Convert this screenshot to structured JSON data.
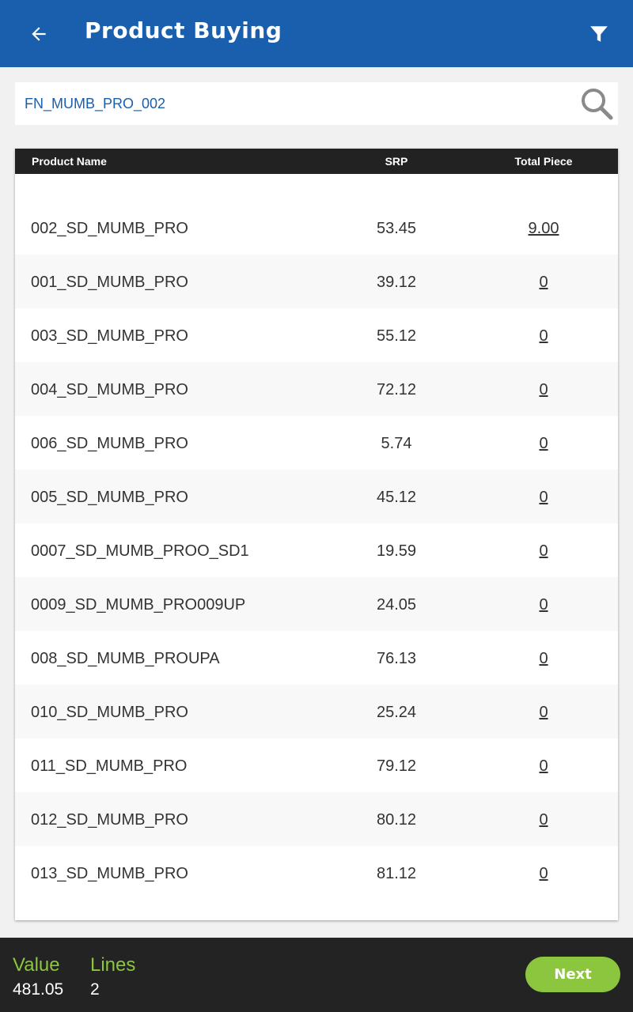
{
  "header": {
    "title": "Product Buying",
    "back_icon": "arrow-left-icon",
    "filter_icon": "filter-icon",
    "color": "#1a5fad"
  },
  "search": {
    "value": "FN_MUMB_PRO_002",
    "icon": "search-icon"
  },
  "table": {
    "columns": [
      "Product Name",
      "SRP",
      "Total Piece"
    ],
    "rows": [
      {
        "name": "002_SD_MUMB_PRO",
        "srp": "53.45",
        "total": "9.00"
      },
      {
        "name": "001_SD_MUMB_PRO",
        "srp": "39.12",
        "total": "0"
      },
      {
        "name": "003_SD_MUMB_PRO",
        "srp": "55.12",
        "total": "0"
      },
      {
        "name": "004_SD_MUMB_PRO",
        "srp": "72.12",
        "total": "0"
      },
      {
        "name": "006_SD_MUMB_PRO",
        "srp": "5.74",
        "total": "0"
      },
      {
        "name": "005_SD_MUMB_PRO",
        "srp": "45.12",
        "total": "0"
      },
      {
        "name": "0007_SD_MUMB_PROO_SD1",
        "srp": "19.59",
        "total": "0"
      },
      {
        "name": "0009_SD_MUMB_PRO009UP",
        "srp": "24.05",
        "total": "0"
      },
      {
        "name": "008_SD_MUMB_PROUPA",
        "srp": "76.13",
        "total": "0"
      },
      {
        "name": "010_SD_MUMB_PRO",
        "srp": "25.24",
        "total": "0"
      },
      {
        "name": "011_SD_MUMB_PRO",
        "srp": "79.12",
        "total": "0"
      },
      {
        "name": "012_SD_MUMB_PRO",
        "srp": "80.12",
        "total": "0"
      },
      {
        "name": "013_SD_MUMB_PRO",
        "srp": "81.12",
        "total": "0"
      }
    ]
  },
  "footer": {
    "value_label": "Value",
    "value": "481.05",
    "lines_label": "Lines",
    "lines": "2",
    "next_label": "Next",
    "accent_color": "#8cc63f"
  }
}
